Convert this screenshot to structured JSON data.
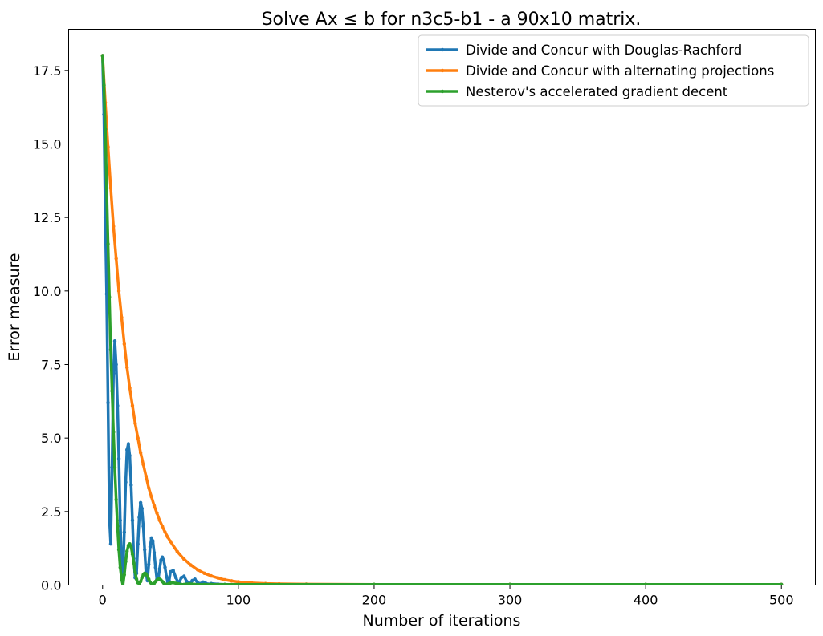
{
  "chart_data": {
    "type": "line",
    "title": "Solve Ax ≤ b for n3c5-b1 - a 90x10 matrix.",
    "xlabel": "Number of iterations",
    "ylabel": "Error measure",
    "xlim": [
      -25,
      525
    ],
    "ylim": [
      0,
      18.9
    ],
    "xticks": [
      0,
      100,
      200,
      300,
      400,
      500
    ],
    "xtick_labels": [
      "0",
      "100",
      "200",
      "300",
      "400",
      "500"
    ],
    "yticks": [
      0,
      2.5,
      5,
      7.5,
      10,
      12.5,
      15,
      17.5
    ],
    "ytick_labels": [
      "0.0",
      "2.5",
      "5.0",
      "7.5",
      "10.0",
      "12.5",
      "15.0",
      "17.5"
    ],
    "legend_position": "top-right",
    "grid": false,
    "series": [
      {
        "name": "Divide and Concur with Douglas-Rachford",
        "color": "#1f77b4",
        "x": [
          0,
          1,
          2,
          3,
          4,
          5,
          6,
          7,
          8,
          9,
          10,
          11,
          12,
          13,
          14,
          15,
          16,
          17,
          18,
          19,
          20,
          21,
          22,
          23,
          24,
          25,
          26,
          27,
          28,
          29,
          30,
          31,
          32,
          33,
          34,
          35,
          36,
          37,
          38,
          39,
          40,
          41,
          42,
          43,
          44,
          45,
          46,
          47,
          48,
          49,
          50,
          52,
          54,
          56,
          58,
          60,
          62,
          64,
          66,
          68,
          70,
          72,
          74,
          76,
          78,
          80,
          85,
          90,
          100,
          120,
          150,
          200,
          300,
          400,
          500
        ],
        "y": [
          18.0,
          16.0,
          12.5,
          9.9,
          6.2,
          2.3,
          1.4,
          4.0,
          7.2,
          8.3,
          7.5,
          6.1,
          4.3,
          2.2,
          0.6,
          0.3,
          1.8,
          3.5,
          4.6,
          4.8,
          4.4,
          3.4,
          2.2,
          0.9,
          0.25,
          0.4,
          1.4,
          2.3,
          2.8,
          2.6,
          2.0,
          1.2,
          0.4,
          0.15,
          0.7,
          1.3,
          1.6,
          1.5,
          1.1,
          0.6,
          0.2,
          0.2,
          0.55,
          0.85,
          0.95,
          0.85,
          0.6,
          0.3,
          0.1,
          0.15,
          0.45,
          0.5,
          0.25,
          0.05,
          0.25,
          0.3,
          0.12,
          0.03,
          0.15,
          0.2,
          0.08,
          0.05,
          0.1,
          0.06,
          0.03,
          0.05,
          0.03,
          0.02,
          0.02,
          0.02,
          0.02,
          0.02,
          0.02,
          0.02,
          0.02
        ]
      },
      {
        "name": "Divide and Concur with alternating projections",
        "color": "#ff7f0e",
        "x": [
          0,
          2,
          4,
          6,
          8,
          10,
          12,
          14,
          16,
          18,
          20,
          22,
          24,
          26,
          28,
          30,
          32,
          34,
          36,
          38,
          40,
          42,
          44,
          46,
          48,
          50,
          55,
          60,
          65,
          70,
          75,
          80,
          85,
          90,
          95,
          100,
          110,
          120,
          130,
          150,
          200,
          300,
          400,
          500
        ],
        "y": [
          18.0,
          16.4,
          14.9,
          13.5,
          12.2,
          11.1,
          10.0,
          9.1,
          8.2,
          7.4,
          6.7,
          6.1,
          5.5,
          5.0,
          4.5,
          4.1,
          3.7,
          3.3,
          3.0,
          2.7,
          2.45,
          2.2,
          2.0,
          1.8,
          1.63,
          1.48,
          1.14,
          0.88,
          0.68,
          0.52,
          0.4,
          0.31,
          0.24,
          0.18,
          0.14,
          0.11,
          0.07,
          0.05,
          0.04,
          0.03,
          0.02,
          0.02,
          0.02,
          0.02
        ]
      },
      {
        "name": "Nesterov's accelerated gradient decent",
        "color": "#2ca02c",
        "x": [
          0,
          1,
          2,
          3,
          4,
          5,
          6,
          7,
          8,
          9,
          10,
          11,
          12,
          13,
          14,
          15,
          16,
          17,
          18,
          19,
          20,
          21,
          22,
          23,
          24,
          25,
          26,
          27,
          28,
          29,
          30,
          31,
          32,
          33,
          34,
          35,
          36,
          37,
          38,
          39,
          40,
          41,
          42,
          43,
          44,
          45,
          46,
          47,
          48,
          49,
          50,
          52,
          54,
          56,
          58,
          60,
          62,
          64,
          66,
          68,
          70,
          75,
          80,
          90,
          100,
          120,
          150,
          200,
          300,
          400,
          500
        ],
        "y": [
          18.0,
          17.0,
          15.5,
          13.5,
          11.6,
          9.8,
          8.0,
          6.6,
          5.2,
          4.0,
          2.9,
          2.0,
          1.2,
          0.6,
          0.2,
          0.0,
          0.35,
          0.8,
          1.15,
          1.35,
          1.4,
          1.3,
          1.05,
          0.75,
          0.45,
          0.2,
          0.08,
          0.05,
          0.12,
          0.25,
          0.35,
          0.4,
          0.38,
          0.3,
          0.2,
          0.1,
          0.04,
          0.03,
          0.06,
          0.12,
          0.17,
          0.2,
          0.2,
          0.17,
          0.12,
          0.07,
          0.03,
          0.02,
          0.03,
          0.05,
          0.07,
          0.08,
          0.06,
          0.04,
          0.02,
          0.02,
          0.03,
          0.04,
          0.03,
          0.02,
          0.02,
          0.02,
          0.02,
          0.02,
          0.02,
          0.02,
          0.02,
          0.02,
          0.02,
          0.02,
          0.02
        ]
      }
    ]
  }
}
